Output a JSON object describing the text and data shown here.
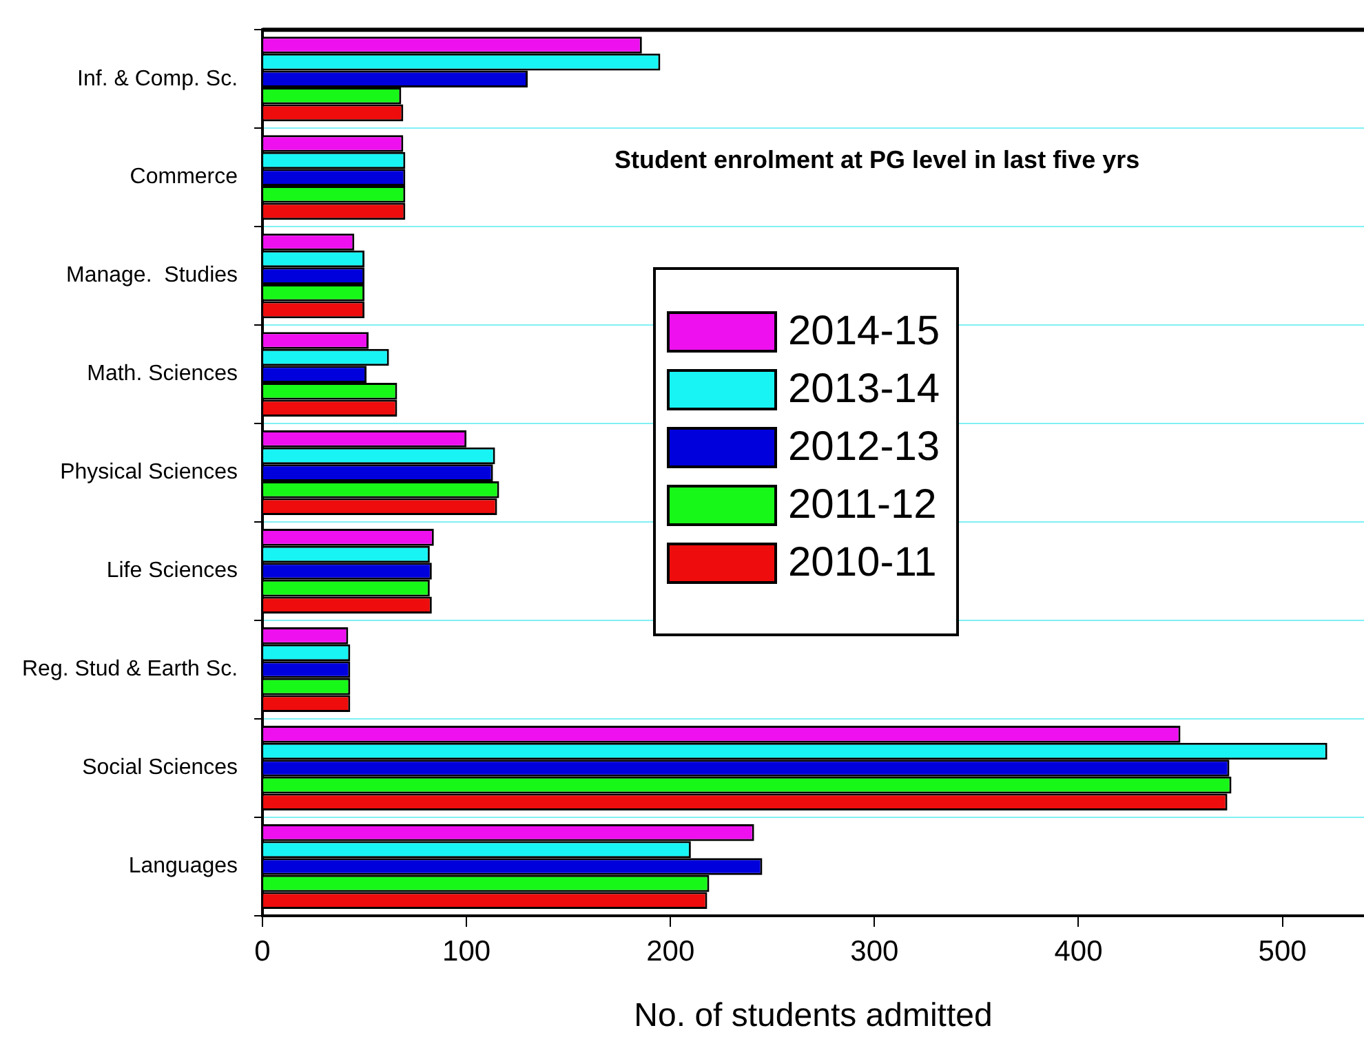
{
  "chart_data": {
    "type": "bar",
    "orientation": "horizontal",
    "title": "Student enrolment at PG level in last five yrs",
    "xlabel": "No. of students admitted",
    "categories": [
      "Inf. & Comp. Sc.",
      "Commerce",
      "Manage.  Studies",
      "Math. Sciences",
      "Physical Sciences",
      "Life Sciences",
      "Reg. Stud & Earth Sc.",
      "Social Sciences",
      "Languages"
    ],
    "series": [
      {
        "name": "2014-15",
        "color": "#ee10ee",
        "values": [
          186,
          69,
          45,
          52,
          100,
          84,
          42,
          450,
          241
        ]
      },
      {
        "name": "2013-14",
        "color": "#18f4f4",
        "values": [
          195,
          70,
          50,
          62,
          114,
          82,
          43,
          522,
          210
        ]
      },
      {
        "name": "2012-13",
        "color": "#0000dd",
        "values": [
          130,
          70,
          50,
          51,
          113,
          83,
          43,
          474,
          245
        ]
      },
      {
        "name": "2011-12",
        "color": "#18f818",
        "values": [
          68,
          70,
          50,
          66,
          116,
          82,
          43,
          475,
          219
        ]
      },
      {
        "name": "2010-11",
        "color": "#ee0c0c",
        "values": [
          69,
          70,
          50,
          66,
          115,
          83,
          43,
          473,
          218
        ]
      }
    ],
    "xlim": [
      0,
      540
    ],
    "xticks": [
      0,
      100,
      200,
      300,
      400,
      500
    ],
    "grid": "y",
    "legend": "right"
  }
}
